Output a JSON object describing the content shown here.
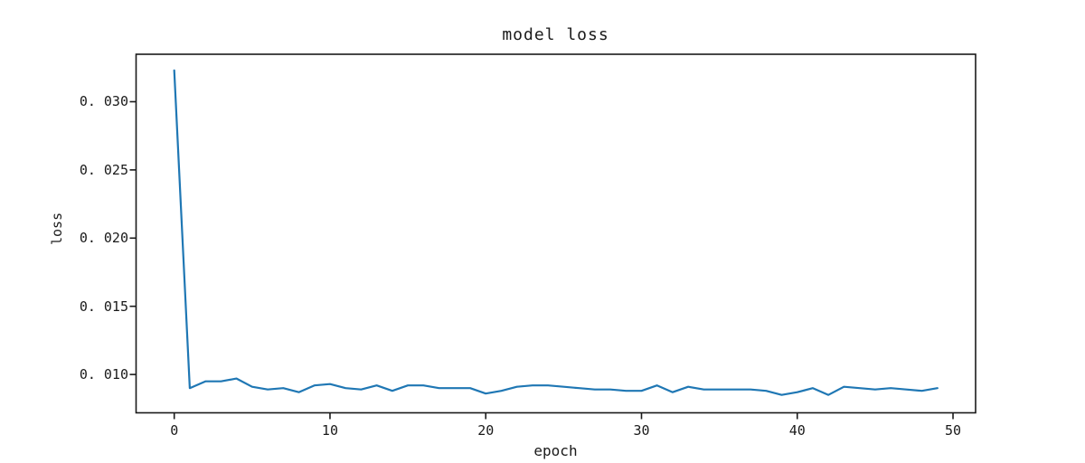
{
  "figure": {
    "title": "model loss",
    "xlabel": "epoch",
    "ylabel": "loss"
  },
  "colors": {
    "line": "#1f77b4",
    "axis": "#1a1a1a",
    "text": "#1a1a1a",
    "background": "#ffffff"
  },
  "chart_data": {
    "type": "line",
    "title": "model loss",
    "xlabel": "epoch",
    "ylabel": "loss",
    "grid": false,
    "legend": null,
    "xlim": [
      -2.45,
      51.45
    ],
    "ylim": [
      0.00719,
      0.03348
    ],
    "xticks": {
      "values": [
        0,
        10,
        20,
        30,
        40,
        50
      ],
      "labels": [
        "0",
        "10",
        "20",
        "30",
        "40",
        "50"
      ]
    },
    "yticks": {
      "values": [
        0.01,
        0.015,
        0.02,
        0.025,
        0.03
      ],
      "labels": [
        "0. 010",
        "0. 015",
        "0. 020",
        "0. 025",
        "0. 030"
      ]
    },
    "series": [
      {
        "name": "loss",
        "color": "#1f77b4",
        "x": [
          0,
          1,
          2,
          3,
          4,
          5,
          6,
          7,
          8,
          9,
          10,
          11,
          12,
          13,
          14,
          15,
          16,
          17,
          18,
          19,
          20,
          21,
          22,
          23,
          24,
          25,
          26,
          27,
          28,
          29,
          30,
          31,
          32,
          33,
          34,
          35,
          36,
          37,
          38,
          39,
          40,
          41,
          42,
          43,
          44,
          45,
          46,
          47,
          48,
          49
        ],
        "values": [
          0.0323,
          0.009,
          0.0095,
          0.0095,
          0.0097,
          0.0091,
          0.0089,
          0.009,
          0.0087,
          0.0092,
          0.0093,
          0.009,
          0.0089,
          0.0092,
          0.0088,
          0.0092,
          0.0092,
          0.009,
          0.009,
          0.009,
          0.0086,
          0.0088,
          0.0091,
          0.0092,
          0.0092,
          0.0091,
          0.009,
          0.0089,
          0.0089,
          0.0088,
          0.0088,
          0.0092,
          0.0087,
          0.0091,
          0.0089,
          0.0089,
          0.0089,
          0.0089,
          0.0088,
          0.0085,
          0.0087,
          0.009,
          0.0085,
          0.0091,
          0.009,
          0.0089,
          0.009,
          0.0089,
          0.0088,
          0.009
        ]
      }
    ]
  }
}
